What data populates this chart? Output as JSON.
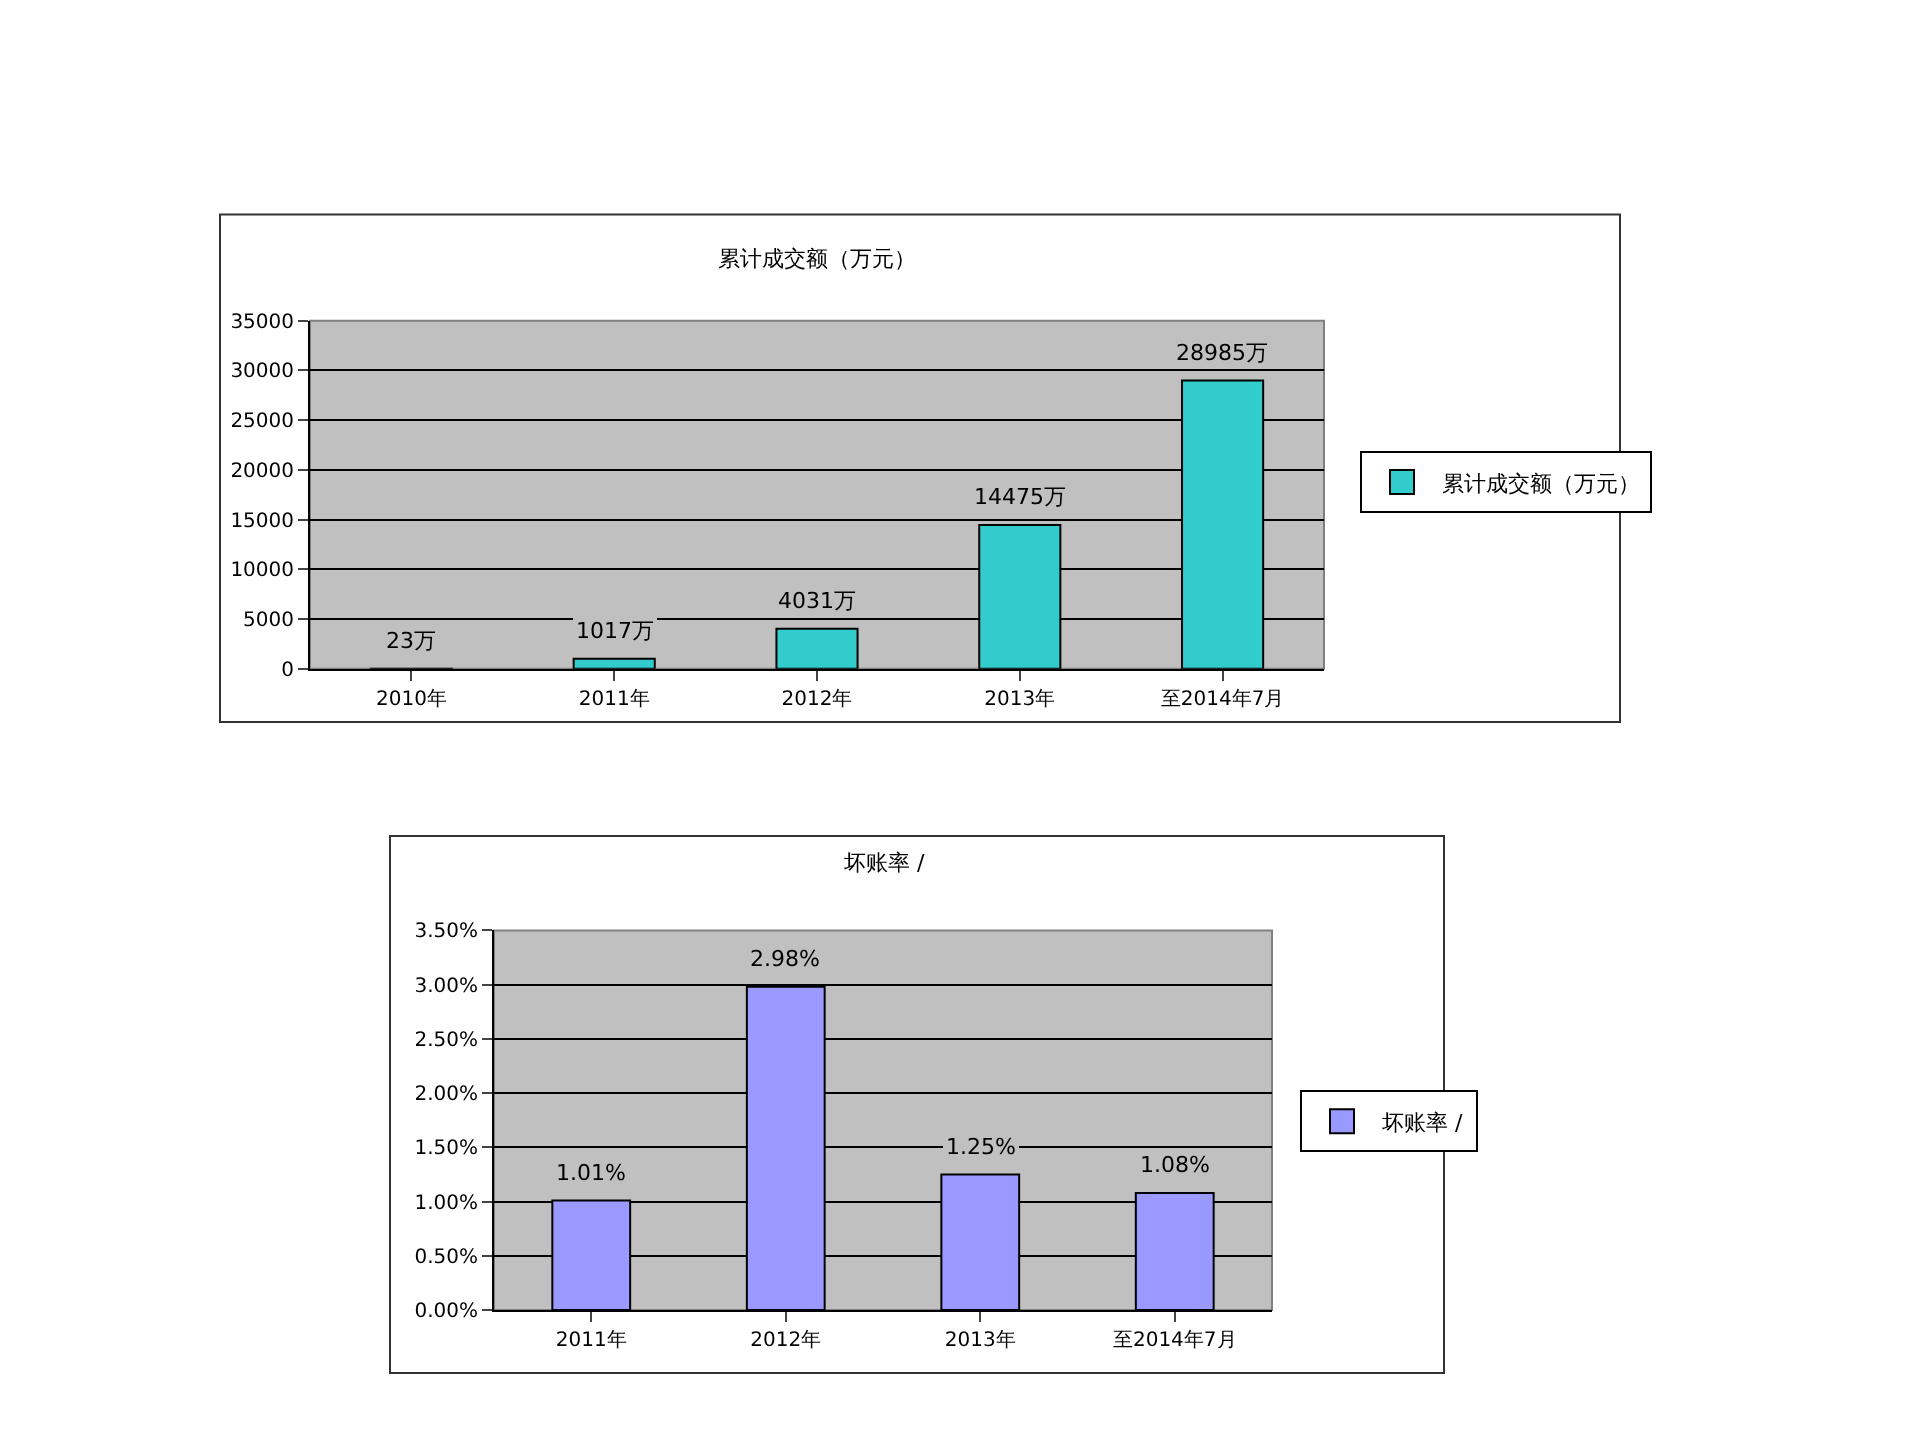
{
  "chart_data": [
    {
      "type": "bar",
      "title": "累计成交额（万元）",
      "categories": [
        "2010年",
        "2011年",
        "2012年",
        "2013年",
        "至2014年7月"
      ],
      "series": [
        {
          "name": "累计成交额（万元）",
          "color": "#33cccc",
          "values": [
            23,
            1017,
            4031,
            14475,
            28985
          ],
          "value_labels": [
            "23万",
            "1017万",
            "4031万",
            "14475万",
            "28985万"
          ]
        }
      ],
      "ylim": [
        0,
        35000
      ],
      "yticks": [
        0,
        5000,
        10000,
        15000,
        20000,
        25000,
        30000,
        35000
      ],
      "grid": "y",
      "legend": "right"
    },
    {
      "type": "bar",
      "title": "坏账率 /",
      "categories": [
        "2011年",
        "2012年",
        "2013年",
        "至2014年7月"
      ],
      "series": [
        {
          "name": "坏账率 /",
          "color": "#9999ff",
          "values": [
            1.01,
            2.98,
            1.25,
            1.08
          ],
          "value_labels": [
            "1.01%",
            "2.98%",
            "1.25%",
            "1.08%"
          ]
        }
      ],
      "ylim": [
        0,
        3.5
      ],
      "yticks": [
        {
          "value": 0,
          "label": "0.00%"
        },
        {
          "value": 0.5,
          "label": "0.50%"
        },
        {
          "value": 1,
          "label": "1.00%"
        },
        {
          "value": 1.5,
          "label": "1.50%"
        },
        {
          "value": 2,
          "label": "2.00%"
        },
        {
          "value": 2.5,
          "label": "2.50%"
        },
        {
          "value": 3,
          "label": "3.00%"
        },
        {
          "value": 3.5,
          "label": "3.50%"
        }
      ],
      "grid": "y",
      "legend": "right"
    }
  ]
}
